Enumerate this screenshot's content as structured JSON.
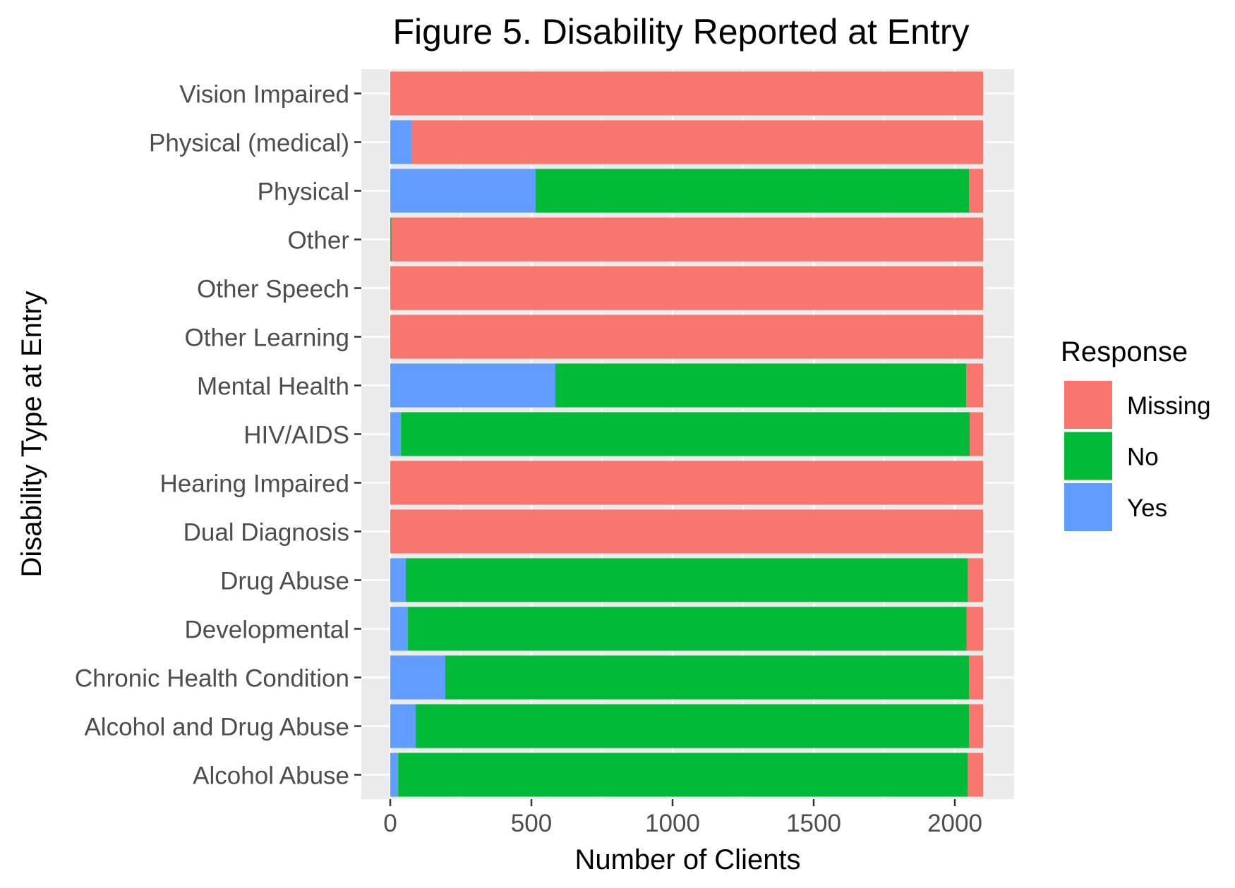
{
  "chart_data": {
    "type": "bar",
    "orientation": "horizontal",
    "stacked": true,
    "title": "Figure 5. Disability Reported at Entry",
    "xlabel": "Number of Clients",
    "ylabel": "Disability Type at Entry",
    "xlim": [
      -100,
      2200
    ],
    "x_ticks": [
      0,
      500,
      1000,
      1500,
      2000
    ],
    "x_tick_labels": [
      "0",
      "500",
      "1000",
      "1500",
      "2000"
    ],
    "grid": true,
    "legend": {
      "title": "Response",
      "position": "right"
    },
    "categories": [
      "Vision Impaired",
      "Physical (medical)",
      "Physical",
      "Other",
      "Other Speech",
      "Other Learning",
      "Mental Health",
      "HIV/AIDS",
      "Hearing Impaired",
      "Dual Diagnosis",
      "Drug Abuse",
      "Developmental",
      "Chronic Health Condition",
      "Alcohol and Drug Abuse",
      "Alcohol Abuse"
    ],
    "series": [
      {
        "name": "Yes",
        "color": "#619CFF",
        "values": [
          0,
          75,
          515,
          0,
          0,
          0,
          585,
          38,
          0,
          0,
          55,
          62,
          195,
          90,
          28
        ]
      },
      {
        "name": "No",
        "color": "#00BA38",
        "values": [
          0,
          0,
          1535,
          4,
          0,
          0,
          1455,
          2015,
          0,
          0,
          1990,
          1980,
          1855,
          1960,
          2017
        ]
      },
      {
        "name": "Missing",
        "color": "#F8766D",
        "values": [
          2100,
          2025,
          50,
          2096,
          2100,
          2100,
          60,
          47,
          2100,
          2100,
          55,
          58,
          50,
          50,
          55
        ]
      }
    ],
    "legend_order": [
      "Missing",
      "No",
      "Yes"
    ]
  }
}
